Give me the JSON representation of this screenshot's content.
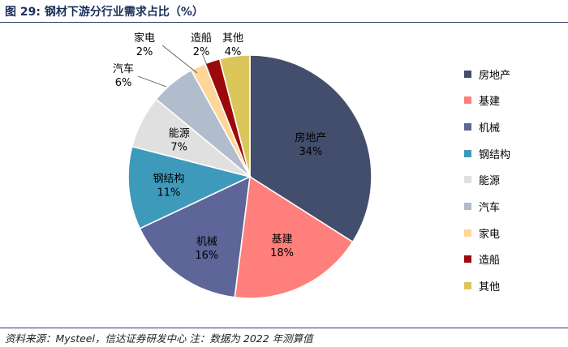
{
  "header": {
    "title": "图 29:  钢材下游分行业需求占比（%）"
  },
  "footer": {
    "source": "资料来源：Mysteel，信达证券研发中心   注：数据为 2022 年测算值"
  },
  "chart_data": {
    "type": "pie",
    "title": "",
    "unit": "%",
    "legend_position": "right",
    "slices": [
      {
        "label": "房地产",
        "value": 34,
        "value_label": "34%",
        "color": "#434e6c"
      },
      {
        "label": "基建",
        "value": 18,
        "value_label": "18%",
        "color": "#fe7f7b"
      },
      {
        "label": "机械",
        "value": 16,
        "value_label": "16%",
        "color": "#5d6599"
      },
      {
        "label": "钢结构",
        "value": 11,
        "value_label": "11%",
        "color": "#3e9abb"
      },
      {
        "label": "能源",
        "value": 7,
        "value_label": "7%",
        "color": "#e0e0e0"
      },
      {
        "label": "汽车",
        "value": 6,
        "value_label": "6%",
        "color": "#b1bccc"
      },
      {
        "label": "家电",
        "value": 2,
        "value_label": "2%",
        "color": "#ffd699"
      },
      {
        "label": "造船",
        "value": 2,
        "value_label": "2%",
        "color": "#9b0a0a"
      },
      {
        "label": "其他",
        "value": 4,
        "value_label": "4%",
        "color": "#dbc65c"
      }
    ]
  }
}
